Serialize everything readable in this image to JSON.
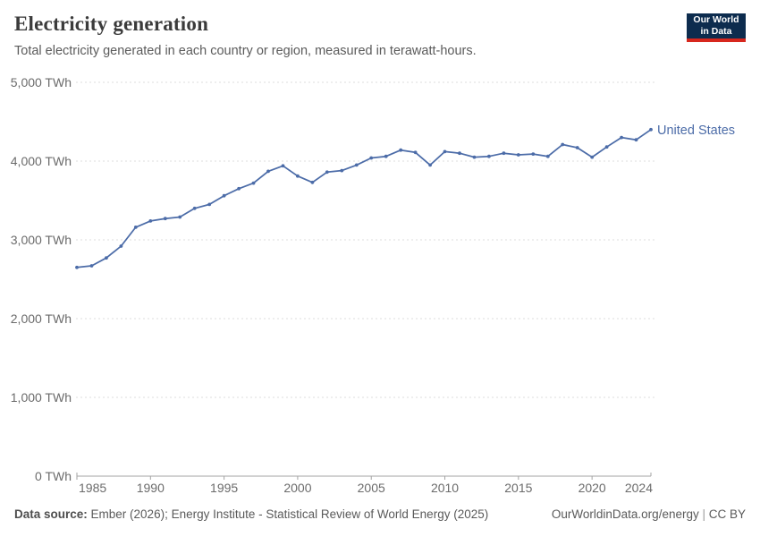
{
  "header": {
    "title": "Electricity generation",
    "subtitle": "Total electricity generated in each country or region, measured in terawatt-hours.",
    "logo": {
      "line1": "Our World",
      "line2": "in Data"
    }
  },
  "footer": {
    "source_label": "Data source:",
    "source_text": " Ember (2026); Energy Institute - Statistical Review of World Energy (2025)",
    "url": "OurWorldinData.org/energy",
    "separator": " | ",
    "license": "CC BY"
  },
  "colors": {
    "line": "#4C6CA8",
    "grid": "#dcdcdc",
    "axis": "#a3a3a3",
    "tick_text": "#6b6b6b",
    "entity_label": "#4C6CA8",
    "title": "#3b3b3b",
    "logo_bg": "#0d2c4e",
    "logo_stripe": "#d7271d"
  },
  "chart_data": {
    "type": "line",
    "title": "Electricity generation",
    "subtitle": "Total electricity generated in each country or region, measured in terawatt-hours.",
    "unit": "TWh",
    "xlim": [
      1985,
      2024
    ],
    "ylim": [
      0,
      5000
    ],
    "grid": "horizontal-dashed",
    "legend_position": "end-of-line",
    "x": [
      1985,
      1986,
      1987,
      1988,
      1989,
      1990,
      1991,
      1992,
      1993,
      1994,
      1995,
      1996,
      1997,
      1998,
      1999,
      2000,
      2001,
      2002,
      2003,
      2004,
      2005,
      2006,
      2007,
      2008,
      2009,
      2010,
      2011,
      2012,
      2013,
      2014,
      2015,
      2016,
      2017,
      2018,
      2019,
      2020,
      2021,
      2022,
      2023,
      2024
    ],
    "series": [
      {
        "name": "United States",
        "color": "#4C6CA8",
        "values": [
          2650,
          2670,
          2770,
          2920,
          3160,
          3240,
          3270,
          3290,
          3400,
          3450,
          3560,
          3650,
          3720,
          3870,
          3940,
          3810,
          3730,
          3860,
          3880,
          3950,
          4040,
          4060,
          4140,
          4110,
          3950,
          4120,
          4100,
          4050,
          4060,
          4100,
          4080,
          4090,
          4060,
          4210,
          4170,
          4050,
          4180,
          4300,
          4270,
          4400
        ]
      }
    ],
    "xticks": [
      {
        "value": 1985,
        "label": "1985"
      },
      {
        "value": 1990,
        "label": "1990"
      },
      {
        "value": 1995,
        "label": "1995"
      },
      {
        "value": 2000,
        "label": "2000"
      },
      {
        "value": 2005,
        "label": "2005"
      },
      {
        "value": 2010,
        "label": "2010"
      },
      {
        "value": 2015,
        "label": "2015"
      },
      {
        "value": 2020,
        "label": "2020"
      },
      {
        "value": 2024,
        "label": "2024"
      }
    ],
    "yticks": [
      {
        "value": 0,
        "label": "0 TWh"
      },
      {
        "value": 1000,
        "label": "1,000 TWh"
      },
      {
        "value": 2000,
        "label": "2,000 TWh"
      },
      {
        "value": 3000,
        "label": "3,000 TWh"
      },
      {
        "value": 4000,
        "label": "4,000 TWh"
      },
      {
        "value": 5000,
        "label": "5,000 TWh"
      }
    ]
  }
}
